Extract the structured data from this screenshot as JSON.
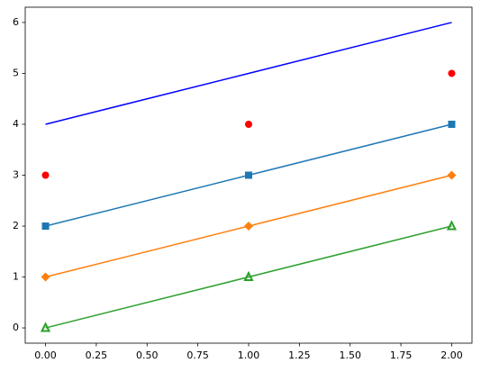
{
  "chart_data": {
    "type": "line",
    "x": [
      0,
      1,
      2
    ],
    "series": [
      {
        "color": "#0000ff",
        "marker": "none",
        "linestyle": "solid",
        "values": [
          4,
          5,
          6
        ]
      },
      {
        "color": "#ff0000",
        "marker": "circle",
        "linestyle": "none",
        "values": [
          3,
          4,
          5
        ]
      },
      {
        "color": "#1f77b4",
        "marker": "square",
        "linestyle": "solid",
        "values": [
          2,
          3,
          4
        ]
      },
      {
        "color": "#ff7f0e",
        "marker": "diamond",
        "linestyle": "solid",
        "values": [
          1,
          2,
          3
        ]
      },
      {
        "color": "#2ca02c",
        "marker": "triangle",
        "linestyle": "solid",
        "values": [
          0,
          1,
          2
        ]
      }
    ],
    "xlim": [
      -0.1,
      2.1
    ],
    "xticks": [
      {
        "value": 0,
        "label": "0.00"
      },
      {
        "value": 0.25,
        "label": "0.25"
      },
      {
        "value": 0.5,
        "label": "0.50"
      },
      {
        "value": 0.75,
        "label": "0.75"
      },
      {
        "value": 1,
        "label": "1.00"
      },
      {
        "value": 1.25,
        "label": "1.25"
      },
      {
        "value": 1.5,
        "label": "1.50"
      },
      {
        "value": 1.75,
        "label": "1.75"
      },
      {
        "value": 2,
        "label": "2.00"
      }
    ],
    "ylim": [
      -0.3,
      6.3
    ],
    "yticks": [
      0,
      1,
      2,
      3,
      4,
      5,
      6
    ],
    "grid": false
  }
}
